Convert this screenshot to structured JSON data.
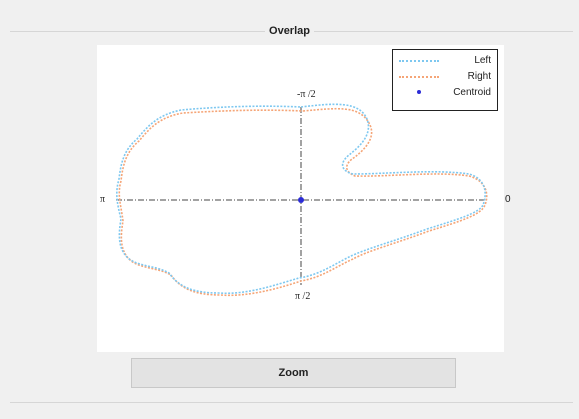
{
  "panel": {
    "title": "Overlap"
  },
  "plot": {
    "labels": {
      "top": "-π /2",
      "bottom": "π /2",
      "left": "π",
      "right": "0"
    },
    "legend": [
      {
        "label": "Left",
        "color": "#7ec8f0",
        "style": "dotted"
      },
      {
        "label": "Right",
        "color": "#f5a577",
        "style": "dotted"
      },
      {
        "label": "Centroid",
        "color": "#2b2bd6",
        "style": "marker"
      }
    ],
    "axis_color": "#444444"
  },
  "buttons": {
    "zoom": "Zoom"
  }
}
